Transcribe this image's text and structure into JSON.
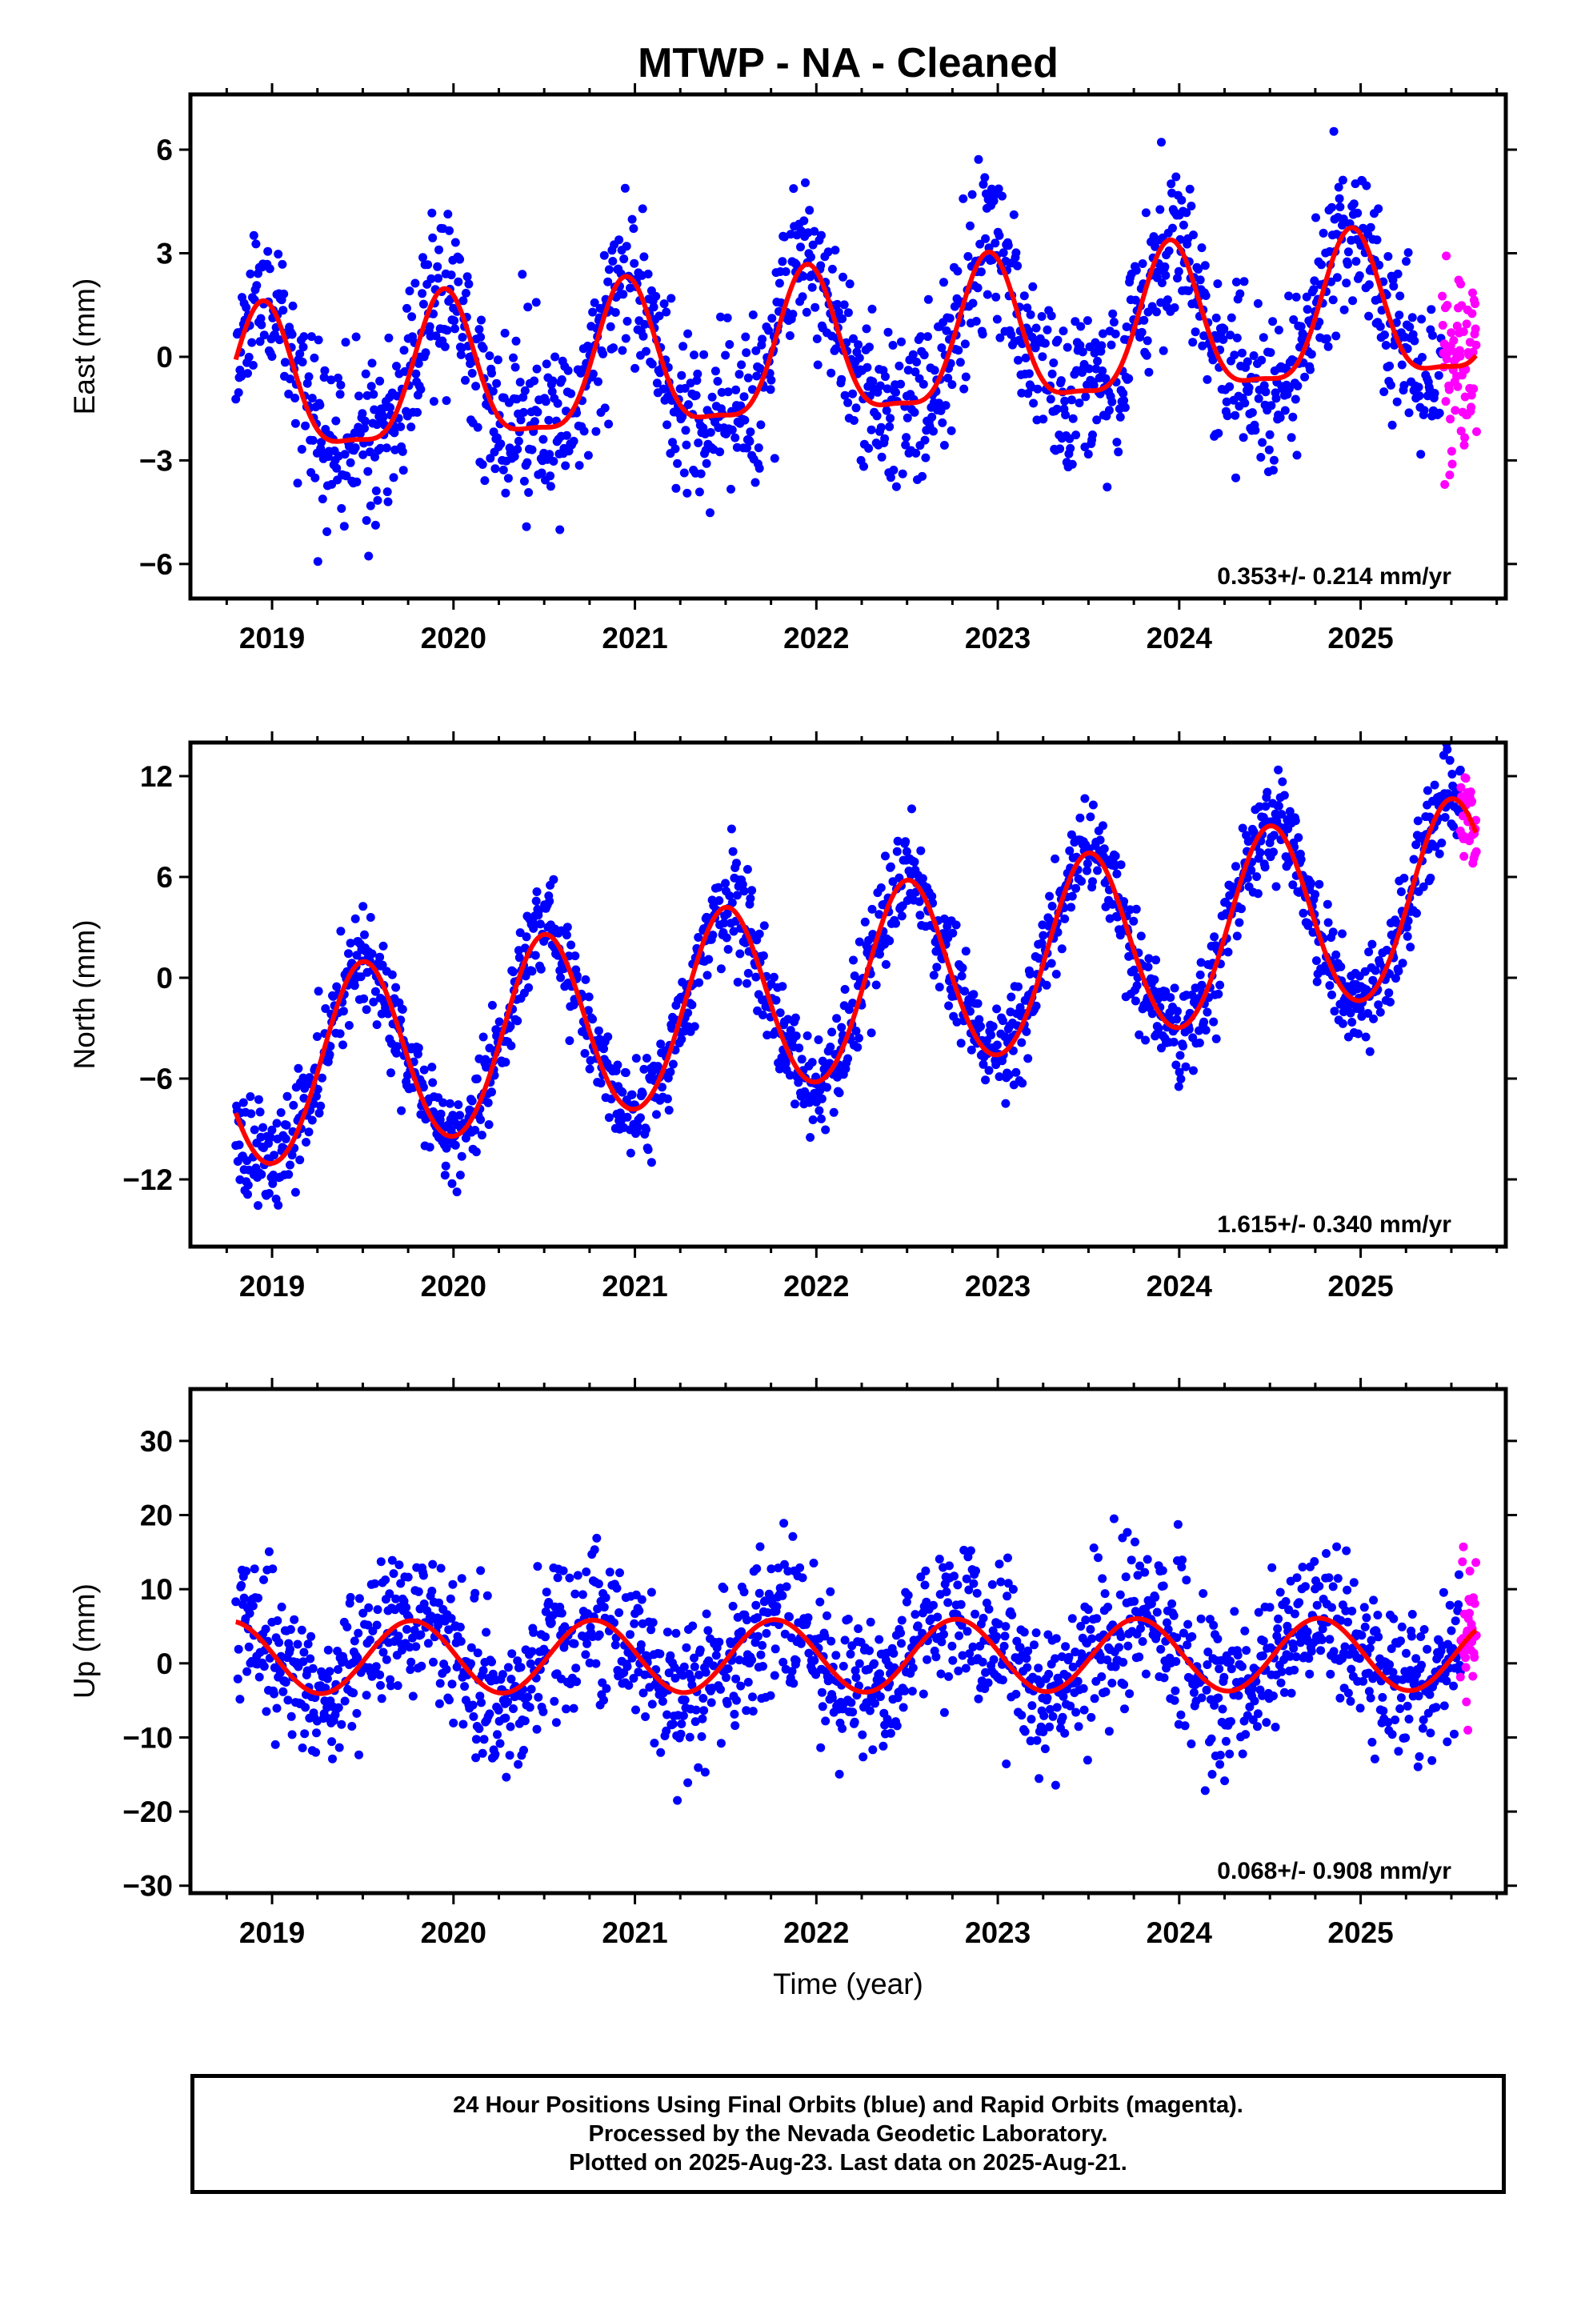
{
  "title": "MTWP  - NA - Cleaned",
  "xlabel": "Time (year)",
  "footer": {
    "line1": "24 Hour Positions Using Final Orbits (blue) and Rapid Orbits (magenta).",
    "line2": "Processed by the Nevada Geodetic Laboratory.",
    "line3": "Plotted on 2025-Aug-23. Last data on 2025-Aug-21."
  },
  "colors": {
    "final": "#0000ff",
    "rapid": "#ff00ff",
    "model": "#ff0000",
    "frame": "#000000"
  },
  "chart_data": [
    {
      "type": "scatter",
      "component": "east",
      "ylabel": "East (mm)",
      "ylim": [
        -7,
        7.6
      ],
      "xlim": [
        2018.55,
        2025.8
      ],
      "yticks": [
        -6,
        -3,
        0,
        3,
        6
      ],
      "xticks": [
        2019,
        2020,
        2021,
        2022,
        2023,
        2024,
        2025
      ],
      "rate_label": "0.353+/- 0.214 mm/yr",
      "model": {
        "rate_mm_per_yr": 0.353,
        "annual_amp": 2.1,
        "annual_peak_year_frac": 0.95,
        "semiannual_amp": 0.6,
        "offset_at_2022": 0.0
      },
      "scatter_sd": 1.2,
      "seed": 11,
      "series": [
        {
          "name": "Final Orbits",
          "x_range": [
            2018.8,
            2025.45
          ],
          "approx_daily": true
        },
        {
          "name": "Rapid Orbits",
          "x_range": [
            2025.45,
            2025.64
          ],
          "approx_daily": true
        }
      ]
    },
    {
      "type": "scatter",
      "component": "north",
      "ylabel": "North (mm)",
      "ylim": [
        -16,
        14
      ],
      "xlim": [
        2018.55,
        2025.8
      ],
      "yticks": [
        -12,
        -6,
        0,
        6,
        12
      ],
      "xticks": [
        2019,
        2020,
        2021,
        2022,
        2023,
        2024,
        2025
      ],
      "rate_label": "1.615+/- 0.340 mm/yr",
      "model": {
        "rate_mm_per_yr": 1.615,
        "annual_amp": 5.6,
        "annual_peak_year_frac": 0.5,
        "semiannual_amp": 0.3,
        "offset_at_2022": -0.9
      },
      "scatter_sd": 1.5,
      "seed": 23,
      "series": [
        {
          "name": "Final Orbits",
          "x_range": [
            2018.8,
            2025.55
          ],
          "approx_daily": true
        },
        {
          "name": "Rapid Orbits",
          "x_range": [
            2025.55,
            2025.64
          ],
          "approx_daily": true
        }
      ]
    },
    {
      "type": "scatter",
      "component": "up",
      "ylabel": "Up (mm)",
      "ylim": [
        -31,
        37
      ],
      "xlim": [
        2018.55,
        2025.8
      ],
      "yticks": [
        -30,
        -20,
        -10,
        0,
        10,
        20,
        30
      ],
      "xticks": [
        2019,
        2020,
        2021,
        2022,
        2023,
        2024,
        2025
      ],
      "rate_label": "0.068+/- 0.908 mm/yr",
      "model": {
        "rate_mm_per_yr": 0.068,
        "annual_amp": 4.9,
        "annual_peak_year_frac": 0.77,
        "semiannual_amp": 0.0,
        "offset_at_2022": 1.0
      },
      "scatter_sd": 5.0,
      "seed": 37,
      "series": [
        {
          "name": "Final Orbits",
          "x_range": [
            2018.8,
            2025.55
          ],
          "approx_daily": true
        },
        {
          "name": "Rapid Orbits",
          "x_range": [
            2025.55,
            2025.64
          ],
          "approx_daily": true
        }
      ]
    }
  ]
}
